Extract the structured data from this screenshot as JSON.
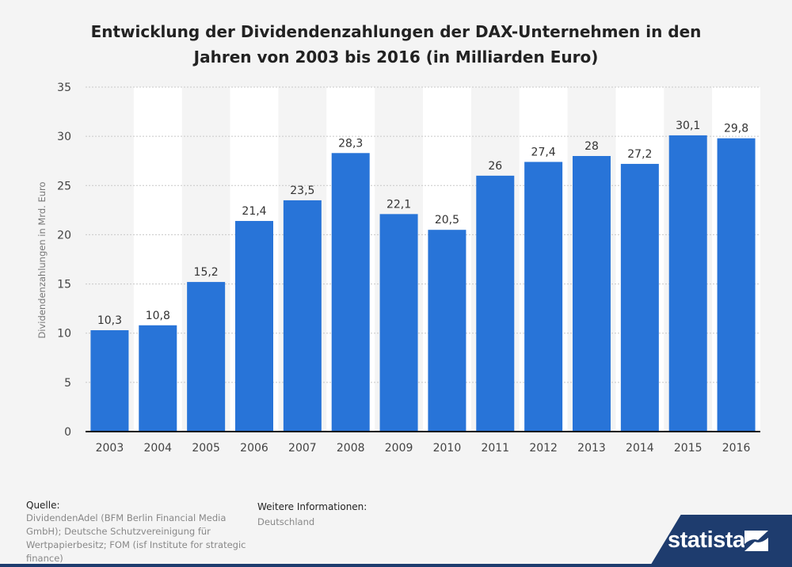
{
  "chart_data": {
    "type": "bar",
    "title": "Entwicklung der Dividendenzahlungen der DAX-Unternehmen in den Jahren von 2003 bis 2016 (in Milliarden Euro)",
    "title_lines": [
      "Entwicklung der Dividendenzahlungen der DAX-Unternehmen in den",
      "Jahren von 2003 bis 2016 (in Milliarden Euro)"
    ],
    "xlabel": "",
    "ylabel": "Dividendenzahlungen in Mrd. Euro",
    "categories": [
      "2003",
      "2004",
      "2005",
      "2006",
      "2007",
      "2008",
      "2009",
      "2010",
      "2011",
      "2012",
      "2013",
      "2014",
      "2015",
      "2016"
    ],
    "values": [
      10.3,
      10.8,
      15.2,
      21.4,
      23.5,
      28.3,
      22.1,
      20.5,
      26,
      27.4,
      28,
      27.2,
      30.1,
      29.8
    ],
    "value_labels": [
      "10,3",
      "10,8",
      "15,2",
      "21,4",
      "23,5",
      "28,3",
      "22,1",
      "20,5",
      "26",
      "27,4",
      "28",
      "27,2",
      "30,1",
      "29,8"
    ],
    "ylim": [
      0,
      35
    ],
    "yticks": [
      0,
      5,
      10,
      15,
      20,
      25,
      30,
      35
    ],
    "grid": true,
    "bar_color": "#2874d8"
  },
  "footer": {
    "source_label": "Quelle:",
    "source_lines": [
      "DividendenAdel (BFM Berlin Financial Media",
      "GmbH); Deutsche Schutzvereinigung für",
      "Wertpapierbesitz; FOM (isf Institute for strategic",
      "finance)"
    ],
    "info_label": "Weitere Informationen:",
    "info_text": "Deutschland"
  },
  "logo": {
    "text": "statista"
  },
  "colors": {
    "background": "#f4f4f4",
    "stripe": "#ffffff",
    "logo_bg": "#1e3c6e",
    "grid": "#c8c8c8"
  }
}
